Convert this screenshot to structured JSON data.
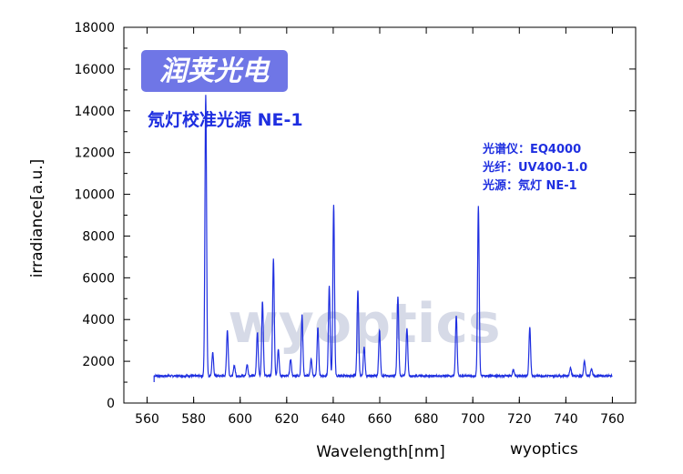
{
  "logo_text": "润荚光电",
  "watermark": "wyoptics",
  "credit": "wyoptics",
  "title": "氖灯校准光源 NE-1",
  "info_lines": [
    "光谱仪：EQ4000",
    "光纤：UV400-1.0",
    "光源：氖灯 NE-1"
  ],
  "chart_data": {
    "type": "line",
    "xlabel": "Wavelength[nm]",
    "ylabel": "irradiance[a.u.]",
    "xlim": [
      550,
      770
    ],
    "ylim": [
      0,
      18000
    ],
    "xticks": [
      560,
      580,
      600,
      620,
      640,
      660,
      680,
      700,
      720,
      740,
      760
    ],
    "yticks": [
      0,
      2000,
      4000,
      6000,
      8000,
      10000,
      12000,
      14000,
      16000,
      18000
    ],
    "baseline": 1300,
    "x_start": 563,
    "x_end": 760,
    "line_color": "#1f2fe0",
    "peaks": [
      {
        "x": 585.2,
        "y": 14800
      },
      {
        "x": 588.2,
        "y": 2400
      },
      {
        "x": 594.5,
        "y": 3500
      },
      {
        "x": 597.5,
        "y": 1800
      },
      {
        "x": 603.0,
        "y": 1850
      },
      {
        "x": 607.4,
        "y": 3400
      },
      {
        "x": 609.6,
        "y": 4900
      },
      {
        "x": 614.3,
        "y": 6900
      },
      {
        "x": 616.4,
        "y": 2600
      },
      {
        "x": 621.7,
        "y": 2100
      },
      {
        "x": 626.6,
        "y": 4200
      },
      {
        "x": 630.5,
        "y": 2100
      },
      {
        "x": 633.4,
        "y": 3600
      },
      {
        "x": 638.3,
        "y": 5600
      },
      {
        "x": 640.2,
        "y": 9500
      },
      {
        "x": 650.6,
        "y": 5400
      },
      {
        "x": 653.3,
        "y": 2700
      },
      {
        "x": 659.9,
        "y": 3500
      },
      {
        "x": 667.8,
        "y": 5100
      },
      {
        "x": 671.7,
        "y": 3600
      },
      {
        "x": 692.9,
        "y": 4200
      },
      {
        "x": 702.4,
        "y": 9400
      },
      {
        "x": 717.4,
        "y": 1600
      },
      {
        "x": 724.5,
        "y": 3600
      },
      {
        "x": 742.0,
        "y": 1700
      },
      {
        "x": 748.0,
        "y": 2000
      },
      {
        "x": 751.0,
        "y": 1650
      }
    ]
  }
}
